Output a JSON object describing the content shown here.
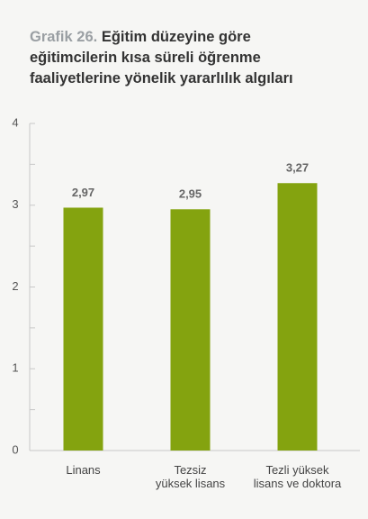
{
  "chart_data": {
    "type": "bar",
    "title_prefix": "Grafik 26.",
    "title": "Eğitim düzeyine göre eğitimcilerin kısa süreli öğrenme faaliyetlerine yönelik yararlılık algıları",
    "categories": [
      "Linans",
      "Tezsiz\nyüksek lisans",
      "Tezli yüksek\nlisans ve doktora"
    ],
    "values": [
      2.97,
      2.95,
      3.27
    ],
    "value_labels": [
      "2,97",
      "2,95",
      "3,27"
    ],
    "color": "#84a30f",
    "ylim": [
      0,
      4
    ],
    "yticks": [
      0,
      1,
      2,
      3,
      4
    ],
    "minor_yticks": [
      0.5,
      1.5,
      2.5,
      3.5
    ]
  }
}
